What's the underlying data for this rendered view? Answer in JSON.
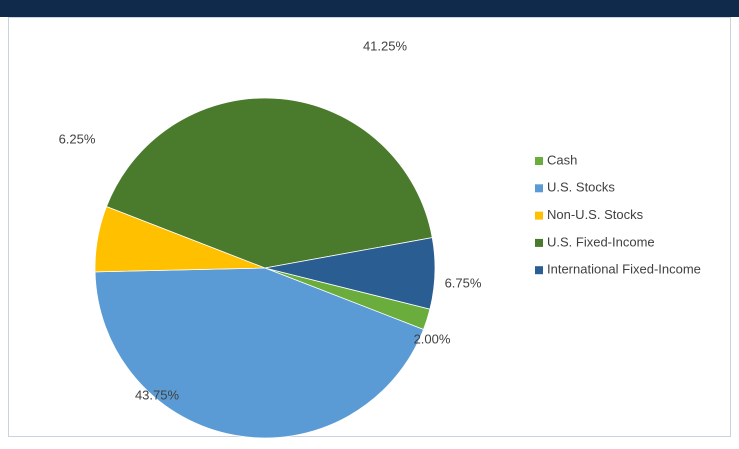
{
  "chart_data": {
    "type": "pie",
    "categories": [
      "Cash",
      "U.S. Stocks",
      "Non-U.S. Stocks",
      "U.S. Fixed-Income",
      "International Fixed-Income"
    ],
    "values": [
      2.0,
      43.75,
      6.25,
      41.25,
      6.75
    ],
    "value_labels": [
      "2.00%",
      "43.75%",
      "6.25%",
      "41.25%",
      "6.75%"
    ],
    "colors": [
      "#6aad3d",
      "#5b9bd5",
      "#ffc000",
      "#4a7a2c",
      "#2a5d91"
    ],
    "legend": "right"
  }
}
